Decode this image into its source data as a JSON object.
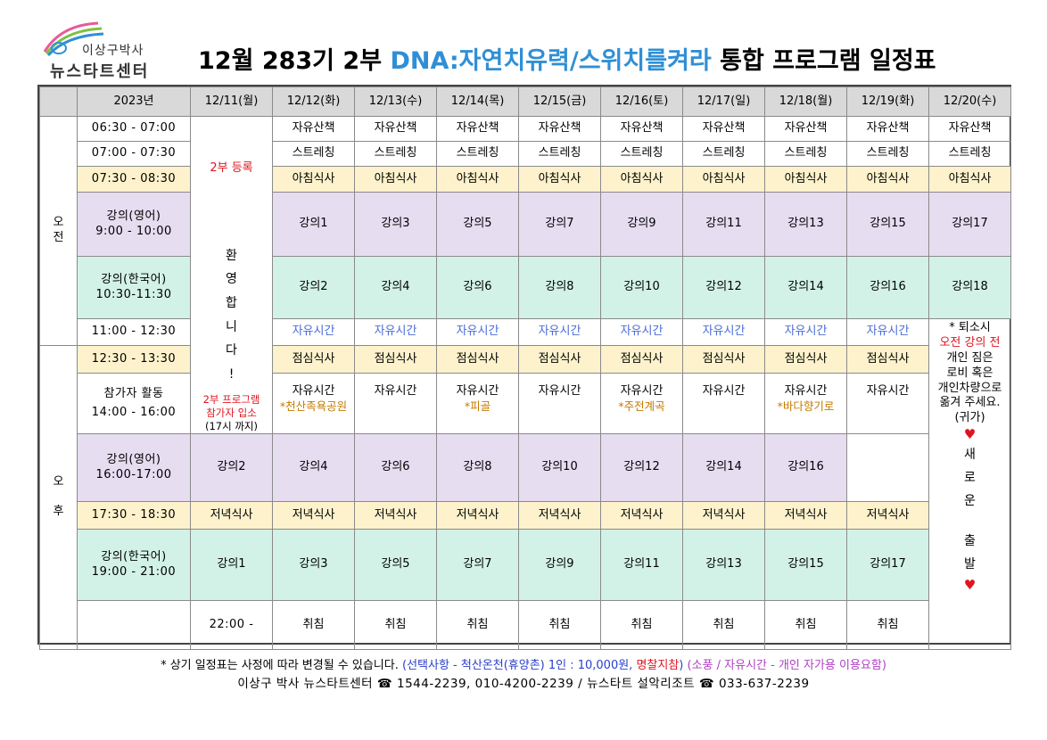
{
  "header": {
    "logo_line1": "이상구박사",
    "logo_line2": "뉴스타트센터",
    "title_prefix": "12월 283기 2부 ",
    "title_program": "DNA:자연치유력/스위치를켜라",
    "title_suffix": " 통합 프로그램 일정표"
  },
  "table": {
    "year": "2023년",
    "dates": [
      "12/11(월)",
      "12/12(화)",
      "12/13(수)",
      "12/14(목)",
      "12/15(금)",
      "12/16(토)",
      "12/17(일)",
      "12/18(월)",
      "12/19(화)",
      "12/20(수)"
    ],
    "period_am": [
      "오",
      "전"
    ],
    "period_pm": [
      "오",
      "후"
    ],
    "times": {
      "walk": "06:30 - 07:00",
      "stretch": "07:00 - 07:30",
      "breakfast": "07:30 - 08:30",
      "eng1_a": "강의(영어)",
      "eng1_b": "9:00 - 10:00",
      "kor1_a": "강의(한국어)",
      "kor1_b": "10:30-11:30",
      "free": "11:00 - 12:30",
      "lunch": "12:30 - 13:30",
      "activity_a": "참가자 활동",
      "activity_b": "14:00 - 16:00",
      "eng2_a": "강의(영어)",
      "eng2_b": "16:00-17:00",
      "dinner": "17:30 - 18:30",
      "kor2_a": "강의(한국어)",
      "kor2_b": "19:00 - 21:00",
      "sleep": "22:00 -"
    },
    "first_day": {
      "register": "2부 등록",
      "welcome": [
        "환",
        "영",
        "합",
        "니",
        "다",
        "!"
      ],
      "entry_a": "2부 프로그램",
      "entry_b": "참가자 입소",
      "entry_c": "(17시 까지)",
      "dinner": "저녁식사",
      "lecture": "강의1",
      "sleep": "취침"
    },
    "walk_label": "자유산책",
    "stretch_label": "스트레칭",
    "breakfast_label": "아침식사",
    "lunch_label": "점심식사",
    "dinner_label": "저녁식사",
    "free_label": "자유시간",
    "sleep_label": "취침",
    "eng_am": [
      "강의1",
      "강의3",
      "강의5",
      "강의7",
      "강의9",
      "강의11",
      "강의13",
      "강의15",
      "강의17"
    ],
    "kor_am": [
      "강의2",
      "강의4",
      "강의6",
      "강의8",
      "강의10",
      "강의12",
      "강의14",
      "강의16",
      "강의18"
    ],
    "eng_pm": [
      "강의2",
      "강의4",
      "강의6",
      "강의8",
      "강의10",
      "강의12",
      "강의14",
      "강의16"
    ],
    "kor_pm": [
      "강의3",
      "강의5",
      "강의7",
      "강의9",
      "강의11",
      "강의13",
      "강의15",
      "강의17"
    ],
    "activities": [
      {
        "label": "자유시간",
        "note": "*천산족욕공원"
      },
      {
        "label": "자유시간",
        "note": ""
      },
      {
        "label": "자유시간",
        "note": "*피골"
      },
      {
        "label": "자유시간",
        "note": ""
      },
      {
        "label": "자유시간",
        "note": "*주전계곡"
      },
      {
        "label": "자유시간",
        "note": ""
      },
      {
        "label": "자유시간",
        "note": "*바다향기로"
      },
      {
        "label": "자유시간",
        "note": ""
      }
    ],
    "last_day": {
      "checkout": "* 퇴소시",
      "note_red": "오전 강의 전",
      "note_lines": [
        "개인 짐은",
        "로비 혹은",
        "개인차량으로",
        "옮겨 주세요.",
        "(귀가)"
      ],
      "farewell": [
        "새",
        "로",
        "운",
        "출",
        "발"
      ],
      "heart": "♥"
    }
  },
  "footer": {
    "line1_a": "* 상기 일정표는 사정에 따라 변경될 수 있습니다. ",
    "line1_b": "(선택사항 - 척산온천(휴양촌) 1인 : 10,000원, ",
    "line1_c": "명찰지참",
    "line1_d": ")",
    "line1_e": " (소풍 / 자유시간 - 개인 자가용 이용요함)",
    "line2": "이상구 박사 뉴스타트센터 ☎ 1544-2239, 010-4200-2239 /  뉴스타트 설악리조트 ☎ 033-637-2239"
  }
}
